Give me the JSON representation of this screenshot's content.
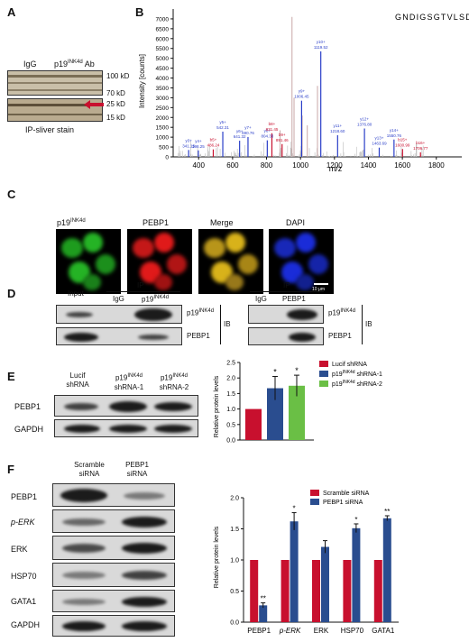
{
  "panel_A": {
    "label": "A",
    "lanes": [
      "IgG",
      "p19INK4d Ab"
    ],
    "markers": [
      "100 kD",
      "70 kD",
      "25 kD",
      "15 kD"
    ],
    "caption": "IP-sliver stain"
  },
  "panel_B": {
    "label": "B",
    "sequence": "GNDIGSGTVLSDYVGSGPK",
    "xlabel": "m/z",
    "ylabel": "Intensity [counts]"
  },
  "panel_C": {
    "label": "C",
    "titles": [
      "p19INK4d",
      "PEBP1",
      "Merge",
      "DAPI"
    ],
    "scale_bar": "10 μm",
    "colors": {
      "green": "#22c422",
      "red": "#e01a1a",
      "merge": "#d8b21a",
      "blue": "#1a2cd8"
    }
  },
  "panel_D": {
    "label": "D",
    "left": {
      "input": "Input",
      "ip": "IP",
      "lanes": [
        "IgG",
        "p19INK4d"
      ],
      "rows": [
        "p19INK4d",
        "PEBP1"
      ],
      "ib": "IB"
    },
    "right": {
      "ip": "IP",
      "lanes": [
        "IgG",
        "PEBP1"
      ],
      "rows": [
        "p19INK4d",
        "PEBP1"
      ],
      "ib": "IB"
    }
  },
  "panel_E": {
    "label": "E",
    "lanes": [
      "Lucif shRNA",
      "p19INK4d shRNA-1",
      "p19INK4d shRNA-2"
    ],
    "rows": [
      "PEBP1",
      "GAPDH"
    ]
  },
  "panel_F": {
    "label": "F",
    "lanes": [
      "Scramble siRNA",
      "PEBP1 siRNA"
    ],
    "rows": [
      "PEBP1",
      "p-ERK",
      "ERK",
      "HSP70",
      "GATA1",
      "GAPDH"
    ]
  },
  "chart_data": [
    {
      "id": "B",
      "type": "line",
      "xlabel": "m/z",
      "ylabel": "Intensity [counts]",
      "xlim": [
        250,
        1950
      ],
      "ylim": [
        0,
        7500
      ],
      "xticks": [
        400,
        600,
        800,
        1000,
        1200,
        1400,
        1600,
        1800
      ],
      "yticks": [
        0,
        500,
        1000,
        1500,
        2000,
        2500,
        3000,
        3500,
        4000,
        4500,
        5000,
        5500,
        6000,
        6500,
        7000
      ],
      "annotated_peaks": [
        {
          "label": "y3+",
          "mz": 341.15,
          "value": 350,
          "ion": "y"
        },
        {
          "label": "y4+",
          "mz": 398.25,
          "value": 330,
          "ion": "y"
        },
        {
          "label": "b5+",
          "mz": 486.24,
          "value": 380,
          "ion": "b"
        },
        {
          "label": "y5+",
          "mz": 542.31,
          "value": 1280,
          "ion": "y"
        },
        {
          "label": "y6+",
          "mz": 641.32,
          "value": 820,
          "ion": "y"
        },
        {
          "label": "y7+",
          "mz": 690.76,
          "value": 1010,
          "ion": "y"
        },
        {
          "label": "y8+",
          "mz": 804.33,
          "value": 840,
          "ion": "y"
        },
        {
          "label": "b8+",
          "mz": 831.45,
          "value": 1200,
          "ion": "b"
        },
        {
          "label": "b9+",
          "mz": 891.46,
          "value": 650,
          "ion": "b"
        },
        {
          "label": "y9+",
          "mz": 1006.45,
          "value": 2850,
          "ion": "y"
        },
        {
          "label": "y10+",
          "mz": 1119.52,
          "value": 5350,
          "ion": "y"
        },
        {
          "label": "y11+",
          "mz": 1218.6,
          "value": 1100,
          "ion": "y"
        },
        {
          "label": "y12+",
          "mz": 1376.8,
          "value": 1440,
          "ion": "y"
        },
        {
          "label": "y13+",
          "mz": 1463.69,
          "value": 470,
          "ion": "y"
        },
        {
          "label": "y14+",
          "mz": 1550.76,
          "value": 880,
          "ion": "y"
        },
        {
          "label": "b15+",
          "mz": 1600.99,
          "value": 400,
          "ion": "b"
        },
        {
          "label": "b16+",
          "mz": 1706.77,
          "value": 230,
          "ion": "b"
        }
      ],
      "other_peaks": [
        {
          "mz": 950,
          "value": 7100
        },
        {
          "mz": 962,
          "value": 3000
        },
        {
          "mz": 1040,
          "value": 1600
        },
        {
          "mz": 1100,
          "value": 3600
        },
        {
          "mz": 1010,
          "value": 2100
        },
        {
          "mz": 880,
          "value": 1350
        }
      ]
    },
    {
      "id": "E",
      "type": "bar",
      "ylabel": "Relative protein levels",
      "ylim": [
        0,
        2.5
      ],
      "yticks": [
        0,
        0.5,
        1.0,
        1.5,
        2.0,
        2.5
      ],
      "series": [
        {
          "name": "Lucif shRNA",
          "value": 1.0,
          "error": 0,
          "sig": "",
          "color": "#c8102e"
        },
        {
          "name": "p19INK4d shRNA-1",
          "value": 1.67,
          "error": 0.38,
          "sig": "*",
          "color": "#2a4d8f"
        },
        {
          "name": "p19INK4d shRNA-2",
          "value": 1.75,
          "error": 0.34,
          "sig": "*",
          "color": "#6abf45"
        }
      ]
    },
    {
      "id": "F",
      "type": "bar",
      "ylabel": "Relative protein levels",
      "ylim": [
        0,
        2.0
      ],
      "yticks": [
        0.0,
        0.5,
        1.0,
        1.5,
        2.0
      ],
      "categories": [
        "PEBP1",
        "p-ERK",
        "ERK",
        "HSP70",
        "GATA1"
      ],
      "series": [
        {
          "name": "Scramble siRNA",
          "color": "#c8102e",
          "values": [
            1,
            1,
            1,
            1,
            1
          ],
          "errors": [
            0,
            0,
            0,
            0,
            0
          ],
          "sig": [
            "",
            "",
            "",
            "",
            ""
          ]
        },
        {
          "name": "PEBP1 siRNA",
          "color": "#2a4d8f",
          "values": [
            0.27,
            1.62,
            1.21,
            1.51,
            1.67
          ],
          "errors": [
            0.04,
            0.14,
            0.1,
            0.07,
            0.04
          ],
          "sig": [
            "**",
            "*",
            "",
            "*",
            "**"
          ]
        }
      ]
    }
  ]
}
